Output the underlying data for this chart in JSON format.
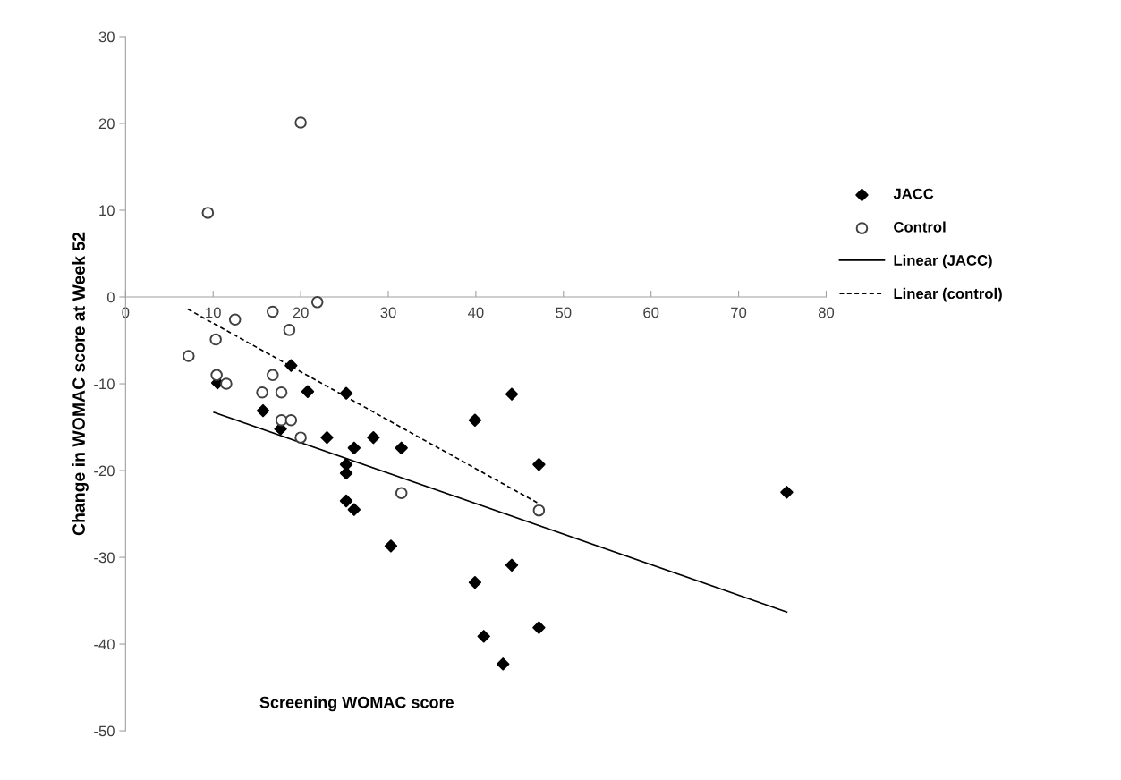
{
  "chart_data": {
    "type": "scatter",
    "xlabel": "Screening WOMAC score",
    "ylabel": "Change in WOMAC score at Week 52",
    "xlim": [
      0,
      80
    ],
    "xticks": [
      0,
      10,
      20,
      30,
      40,
      50,
      60,
      70,
      80
    ],
    "ylim": [
      -50,
      30
    ],
    "yticks": [
      -50,
      -40,
      -30,
      -20,
      -10,
      0,
      10,
      20,
      30
    ],
    "grid": false,
    "legend": "right",
    "series": [
      {
        "name": "JACC",
        "marker": "diamond",
        "color": "#000000",
        "x": [
          18.9,
          10.5,
          20.8,
          25.2,
          15.7,
          17.7,
          23.0,
          28.3,
          26.1,
          31.5,
          25.2,
          25.2,
          25.2,
          26.1,
          44.1,
          39.9,
          47.2,
          75.5,
          30.3,
          44.1,
          39.9,
          47.2,
          40.9,
          43.1
        ],
        "values": [
          -7.9,
          -9.9,
          -10.9,
          -11.1,
          -13.1,
          -15.2,
          -16.2,
          -16.2,
          -17.4,
          -17.4,
          -19.3,
          -20.3,
          -23.5,
          -24.5,
          -11.2,
          -14.2,
          -19.3,
          -22.5,
          -28.7,
          -30.9,
          -32.9,
          -38.1,
          -39.1,
          -42.3
        ]
      },
      {
        "name": "Control",
        "marker": "circle",
        "color": "#404040",
        "x": [
          7.2,
          10.3,
          10.4,
          11.5,
          12.5,
          16.8,
          18.7,
          21.9,
          16.8,
          15.6,
          17.8,
          17.8,
          18.9,
          20.0,
          31.5,
          47.2,
          9.4,
          20.0
        ],
        "values": [
          -6.8,
          -4.9,
          -9.0,
          -10.0,
          -2.6,
          -1.7,
          -3.8,
          -0.6,
          -9.0,
          -11.0,
          -11.0,
          -14.2,
          -14.2,
          -16.2,
          -22.6,
          -24.6,
          9.7,
          20.1
        ]
      },
      {
        "name": "Linear (JACC)",
        "type": "line",
        "line_style": "solid",
        "marker": "none",
        "color": "#000000",
        "x": [
          10.1,
          75.5
        ],
        "values": [
          -13.3,
          -36.3
        ]
      },
      {
        "name": "Linear (control)",
        "type": "line",
        "line_style": "dashed",
        "marker": "none",
        "color": "#000000",
        "x": [
          7.1,
          47.0
        ],
        "values": [
          -1.4,
          -23.7
        ]
      }
    ]
  }
}
